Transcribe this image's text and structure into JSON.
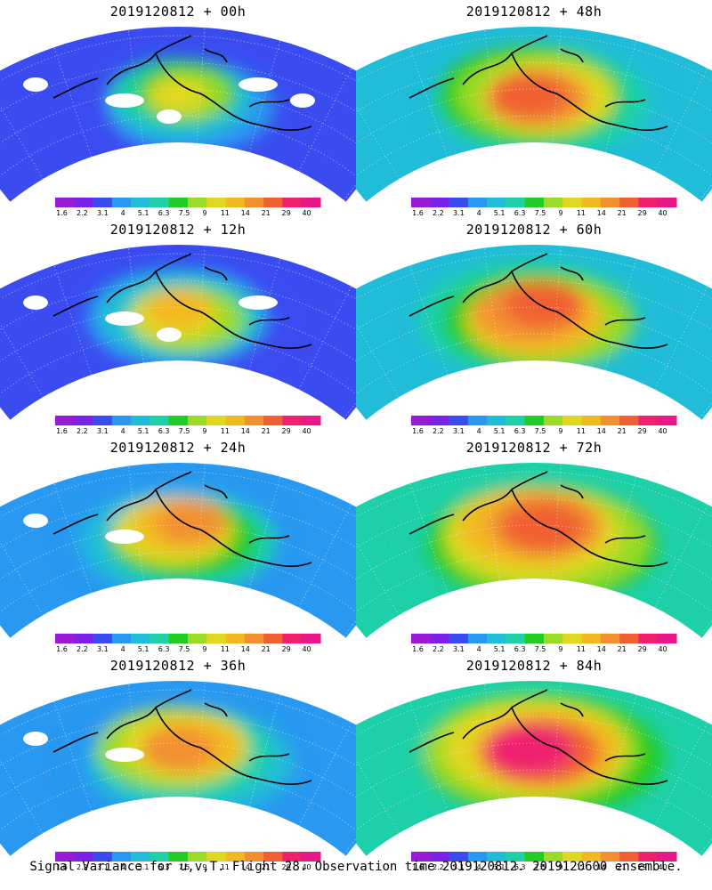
{
  "panels": [
    {
      "title": "2019120812 + 00h",
      "lead": 0,
      "intensity": 0.25
    },
    {
      "title": "2019120812 + 48h",
      "lead": 48,
      "intensity": 0.62
    },
    {
      "title": "2019120812 + 12h",
      "lead": 12,
      "intensity": 0.38
    },
    {
      "title": "2019120812 + 60h",
      "lead": 60,
      "intensity": 0.68
    },
    {
      "title": "2019120812 + 24h",
      "lead": 24,
      "intensity": 0.48
    },
    {
      "title": "2019120812 + 72h",
      "lead": 72,
      "intensity": 0.78
    },
    {
      "title": "2019120812 + 36h",
      "lead": 36,
      "intensity": 0.55
    },
    {
      "title": "2019120812 + 84h",
      "lead": 84,
      "intensity": 0.85
    }
  ],
  "colorbar": {
    "labels": [
      "1.6",
      "2.2",
      "3.1",
      "4",
      "5.1",
      "6.3",
      "7.5",
      "9",
      "11",
      "14",
      "21",
      "29",
      "40"
    ],
    "colors": [
      "#9a19d6",
      "#7a22e8",
      "#3a4cf0",
      "#2898f0",
      "#20bcd8",
      "#1dd0a8",
      "#22cc22",
      "#9ada28",
      "#e0d820",
      "#f2b820",
      "#f29030",
      "#f06030",
      "#ef2070",
      "#e81888"
    ]
  },
  "caption": "Signal Variance for u,v,T. Flight 28. Observation time 2019120812. 2019120600 ensemble."
}
